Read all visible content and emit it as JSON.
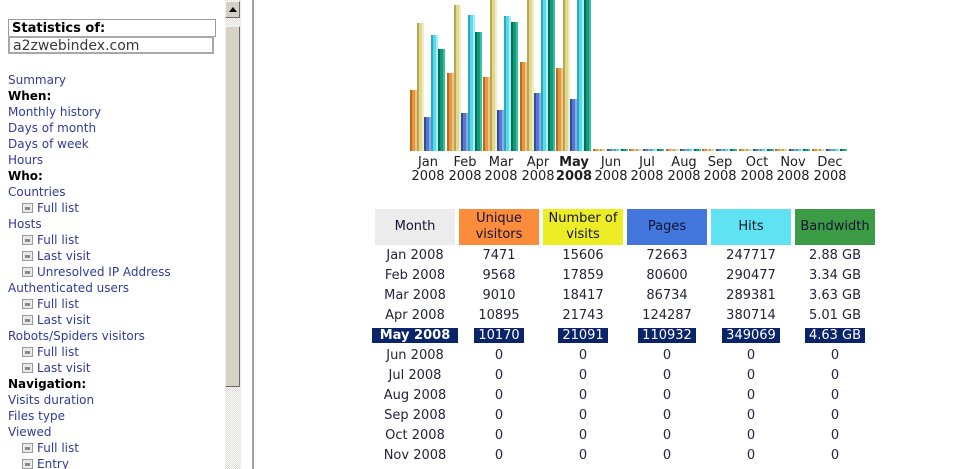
{
  "sidebar": {
    "statistics_label": "Statistics of:",
    "domain": "a2zwebindex.com",
    "items": [
      {
        "type": "link",
        "label": "Summary"
      },
      {
        "type": "head",
        "label": "When:"
      },
      {
        "type": "link",
        "label": "Monthly history"
      },
      {
        "type": "link",
        "label": "Days of month"
      },
      {
        "type": "link",
        "label": "Days of week"
      },
      {
        "type": "link",
        "label": "Hours"
      },
      {
        "type": "head",
        "label": "Who:"
      },
      {
        "type": "link",
        "label": "Countries"
      },
      {
        "type": "sub",
        "label": "Full list"
      },
      {
        "type": "link",
        "label": "Hosts"
      },
      {
        "type": "sub",
        "label": "Full list"
      },
      {
        "type": "sub",
        "label": "Last visit"
      },
      {
        "type": "sub",
        "label": "Unresolved IP Address"
      },
      {
        "type": "link",
        "label": "Authenticated users"
      },
      {
        "type": "sub",
        "label": "Full list"
      },
      {
        "type": "sub",
        "label": "Last visit"
      },
      {
        "type": "link",
        "label": "Robots/Spiders visitors"
      },
      {
        "type": "sub",
        "label": "Full list"
      },
      {
        "type": "sub",
        "label": "Last visit"
      },
      {
        "type": "head",
        "label": "Navigation:"
      },
      {
        "type": "link",
        "label": "Visits duration"
      },
      {
        "type": "link",
        "label": "Files type"
      },
      {
        "type": "link",
        "label": "Viewed"
      },
      {
        "type": "sub",
        "label": "Full list"
      },
      {
        "type": "sub",
        "label": "Entry"
      }
    ]
  },
  "scrollbar": {
    "up_icon": "up-arrow"
  },
  "chart_data": {
    "type": "bar",
    "categories": [
      "Jan 2008",
      "Feb 2008",
      "Mar 2008",
      "Apr 2008",
      "May 2008",
      "Jun 2008",
      "Jul 2008",
      "Aug 2008",
      "Sep 2008",
      "Oct 2008",
      "Nov 2008",
      "Dec 2008"
    ],
    "months": [
      "Jan",
      "Feb",
      "Mar",
      "Apr",
      "May",
      "Jun",
      "Jul",
      "Aug",
      "Sep",
      "Oct",
      "Nov",
      "Dec"
    ],
    "year": "2008",
    "highlighted_month": "May",
    "series": [
      {
        "name": "Unique visitors",
        "values": [
          7471,
          9568,
          9010,
          10895,
          10170,
          0,
          0,
          0,
          0,
          0,
          0,
          0
        ]
      },
      {
        "name": "Number of visits",
        "values": [
          15606,
          17859,
          18417,
          21743,
          21091,
          0,
          0,
          0,
          0,
          0,
          0,
          0
        ]
      },
      {
        "name": "Pages",
        "values": [
          72663,
          80600,
          86734,
          124287,
          110932,
          0,
          0,
          0,
          0,
          0,
          0,
          0
        ]
      },
      {
        "name": "Hits",
        "values": [
          247717,
          290477,
          289381,
          380714,
          349069,
          0,
          0,
          0,
          0,
          0,
          0,
          0
        ]
      },
      {
        "name": "Bandwidth (GB)",
        "values": [
          2.88,
          3.34,
          3.63,
          5.01,
          4.63,
          0,
          0,
          0,
          0,
          0,
          0,
          0
        ]
      }
    ],
    "scale_note": "bars clipped at top of viewport; visitors+visits share scale, pages+hits share scale, bandwidth own scale",
    "legend_position": "none",
    "grid": false
  },
  "table": {
    "headers": [
      "Month",
      "Unique visitors",
      "Number of visits",
      "Pages",
      "Hits",
      "Bandwidth"
    ],
    "rows": [
      {
        "cells": [
          "Jan 2008",
          "7471",
          "15606",
          "72663",
          "247717",
          "2.88 GB"
        ],
        "selected": false
      },
      {
        "cells": [
          "Feb 2008",
          "9568",
          "17859",
          "80600",
          "290477",
          "3.34 GB"
        ],
        "selected": false
      },
      {
        "cells": [
          "Mar 2008",
          "9010",
          "18417",
          "86734",
          "289381",
          "3.63 GB"
        ],
        "selected": false
      },
      {
        "cells": [
          "Apr 2008",
          "10895",
          "21743",
          "124287",
          "380714",
          "5.01 GB"
        ],
        "selected": false
      },
      {
        "cells": [
          "May 2008",
          "10170",
          "21091",
          "110932",
          "349069",
          "4.63 GB"
        ],
        "selected": true
      },
      {
        "cells": [
          "Jun 2008",
          "0",
          "0",
          "0",
          "0",
          "0"
        ],
        "selected": false
      },
      {
        "cells": [
          "Jul 2008",
          "0",
          "0",
          "0",
          "0",
          "0"
        ],
        "selected": false
      },
      {
        "cells": [
          "Aug 2008",
          "0",
          "0",
          "0",
          "0",
          "0"
        ],
        "selected": false
      },
      {
        "cells": [
          "Sep 2008",
          "0",
          "0",
          "0",
          "0",
          "0"
        ],
        "selected": false
      },
      {
        "cells": [
          "Oct 2008",
          "0",
          "0",
          "0",
          "0",
          "0"
        ],
        "selected": false
      },
      {
        "cells": [
          "Nov 2008",
          "0",
          "0",
          "0",
          "0",
          "0"
        ],
        "selected": false
      }
    ]
  },
  "colors": {
    "header_bg": [
      "#ececec",
      "#fb8c3c",
      "#eded25",
      "#4477dd",
      "#5fe3f2",
      "#3c9c46"
    ],
    "bar_colors": [
      [
        "#b5701f",
        "#e89544",
        "#f6c183"
      ],
      [
        "#b3a955",
        "#e2d88e",
        "#f2ecc0"
      ],
      [
        "#2e4f9e",
        "#5577d6",
        "#8fa7e8"
      ],
      [
        "#2fa8bd",
        "#55dbec",
        "#a8f0f8"
      ],
      [
        "#0a6b52",
        "#11997a",
        "#35c2a0"
      ]
    ],
    "selection": "#0a246a",
    "link": "#333a99"
  }
}
